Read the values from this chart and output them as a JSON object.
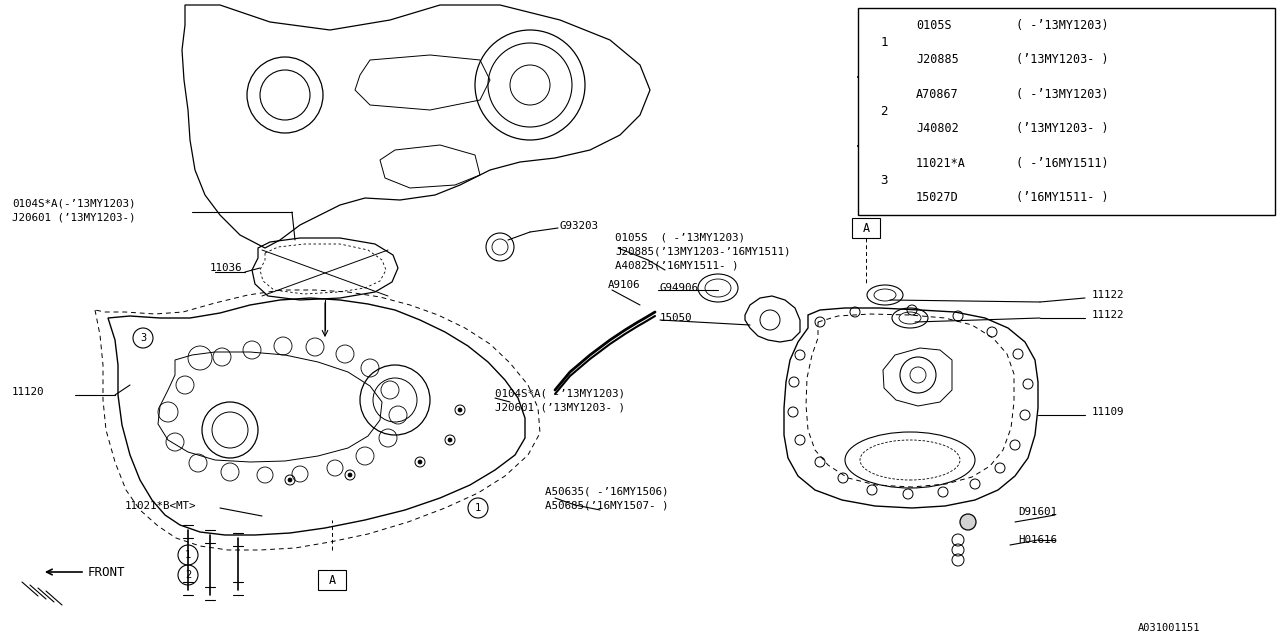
{
  "bg_color": "#ffffff",
  "line_color": "#000000",
  "fig_width": 12.8,
  "fig_height": 6.4,
  "table": {
    "part1a": "0105S",
    "range1a": "( -’13MY1203)",
    "part1b": "J20885",
    "range1b": "(’13MY1203- )",
    "part2a": "A70867",
    "range2a": "( -’13MY1203)",
    "part2b": "J40802",
    "range2b": "(’13MY1203- )",
    "part3a": "11021*A",
    "range3a": "( -’16MY1511)",
    "part3b": "15027D",
    "range3b": "(’16MY1511- )"
  },
  "labels": {
    "front": "FRONT",
    "diagram_id": "A031001151",
    "ref_topleft_a": "0104S*A(-’13MY1203)",
    "ref_topleft_b": "J20601 (’13MY1203-)",
    "ref_11036": "11036",
    "ref_G93203": "G93203",
    "ref_0105S": "0105S  ( -’13MY1203)",
    "ref_J20885": "J20885(’13MY1203-’16MY1511)",
    "ref_A40825": "A40825(’16MY1511- )",
    "ref_A9106": "A9106",
    "ref_G94906": "G94906",
    "ref_15050": "15050",
    "ref_11120": "11120",
    "ref_mid_a": "0104S*A( -’13MY1203)",
    "ref_mid_b": "J20601 (’13MY1203- )",
    "ref_A50635": "A50635( -’16MY1506)",
    "ref_A50685": "A50685(’16MY1507- )",
    "ref_11021B": "11021*B<MT>",
    "ref_11122a": "11122",
    "ref_11122b": "11122",
    "ref_11109": "11109",
    "ref_D91601": "D91601",
    "ref_H01616": "H01616"
  }
}
